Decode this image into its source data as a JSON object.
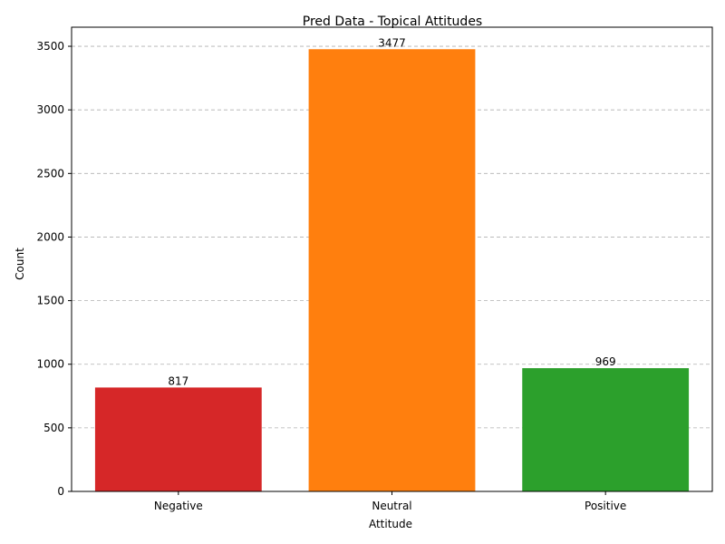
{
  "chart_data": {
    "type": "bar",
    "title": "Pred Data - Topical Attitudes",
    "xlabel": "Attitude",
    "ylabel": "Count",
    "categories": [
      "Negative",
      "Neutral",
      "Positive"
    ],
    "values": [
      817,
      3477,
      969
    ],
    "data_labels": [
      "817",
      "3477",
      "969"
    ],
    "colors": [
      "#d62728",
      "#ff7f0e",
      "#2ca02c"
    ],
    "ylim": [
      0,
      3650
    ],
    "yticks": [
      0,
      500,
      1000,
      1500,
      2000,
      2500,
      3000,
      3500
    ],
    "ytick_labels": [
      "0",
      "500",
      "1000",
      "1500",
      "2000",
      "2500",
      "3000",
      "3500"
    ],
    "grid": "y-axis dashed",
    "legend": "none"
  }
}
